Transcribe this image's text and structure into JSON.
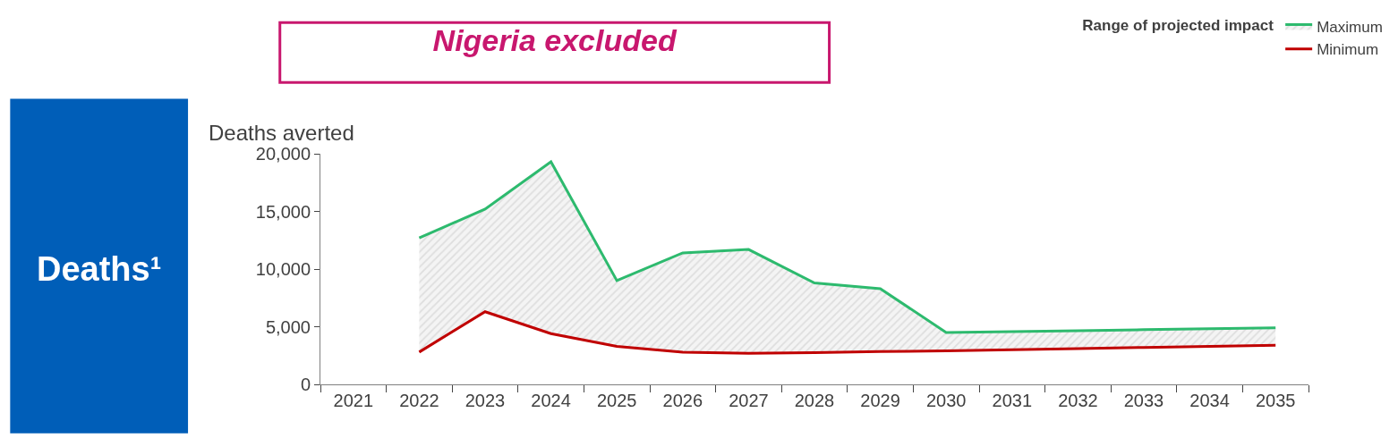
{
  "chart_data": {
    "type": "line",
    "title": "Nigeria excluded",
    "ylabel": "Deaths averted",
    "legend_title": "Range of projected impact",
    "annotations": [
      "Deaths¹"
    ],
    "categories": [
      "2021",
      "2022",
      "2023",
      "2024",
      "2025",
      "2026",
      "2027",
      "2028",
      "2029",
      "2030",
      "2031",
      "2032",
      "2033",
      "2034",
      "2035"
    ],
    "series": [
      {
        "name": "Minimum",
        "color": "#c00000",
        "values": [
          null,
          2800,
          6300,
          4400,
          3300,
          2800,
          2700,
          2750,
          2850,
          2900,
          3000,
          3100,
          3200,
          3300,
          3400
        ]
      },
      {
        "name": "Maximum",
        "type": "area",
        "color": "#2dba6e",
        "values": [
          null,
          12700,
          15200,
          19300,
          9000,
          11400,
          11700,
          8800,
          8300,
          4500,
          4580,
          4660,
          4740,
          4820,
          4900
        ]
      }
    ],
    "ylim": [
      0,
      20000
    ],
    "yticks": [
      {
        "value": 0,
        "label": "0"
      },
      {
        "value": 5000,
        "label": "5,000"
      },
      {
        "value": 10000,
        "label": "10,000"
      },
      {
        "value": 15000,
        "label": "15,000"
      },
      {
        "value": 20000,
        "label": "20,000"
      }
    ],
    "grid": false,
    "legend": "top right",
    "marker": "none",
    "line_style": "solid"
  }
}
